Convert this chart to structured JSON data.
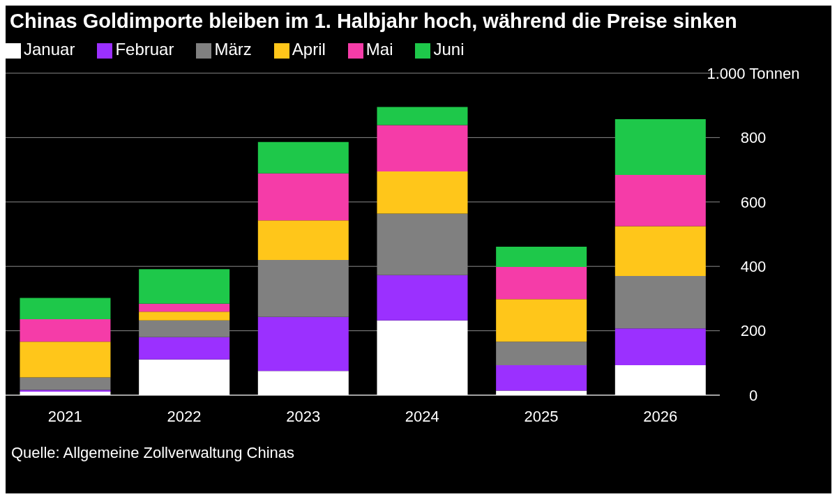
{
  "chart_data": {
    "type": "bar",
    "title": "Chinas Goldimporte bleiben im 1. Halbjahr hoch, während die Preise sinken",
    "categories": [
      "2021",
      "2022",
      "2023",
      "2024",
      "2025",
      "2026"
    ],
    "stacked": true,
    "series": [
      {
        "name": "Januar",
        "color": "#ffffff",
        "values": [
          11,
          111,
          75,
          232,
          14,
          93
        ]
      },
      {
        "name": "Februar",
        "color": "#9b30ff",
        "values": [
          5,
          69,
          168,
          141,
          79,
          114
        ]
      },
      {
        "name": "März",
        "color": "#808080",
        "values": [
          39,
          52,
          177,
          191,
          73,
          163
        ]
      },
      {
        "name": "April",
        "color": "#ffc61a",
        "values": [
          111,
          27,
          123,
          131,
          132,
          155
        ]
      },
      {
        "name": "Mai",
        "color": "#f53ca8",
        "values": [
          70,
          25,
          146,
          144,
          100,
          159
        ]
      },
      {
        "name": "Juni",
        "color": "#1ec84a",
        "values": [
          66,
          107,
          97,
          56,
          63,
          173
        ]
      }
    ],
    "ylim": [
      0,
      1000
    ],
    "yticks": [
      0,
      200,
      400,
      600,
      800,
      {
        "value": 1000,
        "label": "1.000 Tonnen"
      }
    ],
    "grid": "y",
    "legend": "top left",
    "annotations": [
      "Quelle: Allgemeine Zollverwaltung Chinas"
    ]
  }
}
